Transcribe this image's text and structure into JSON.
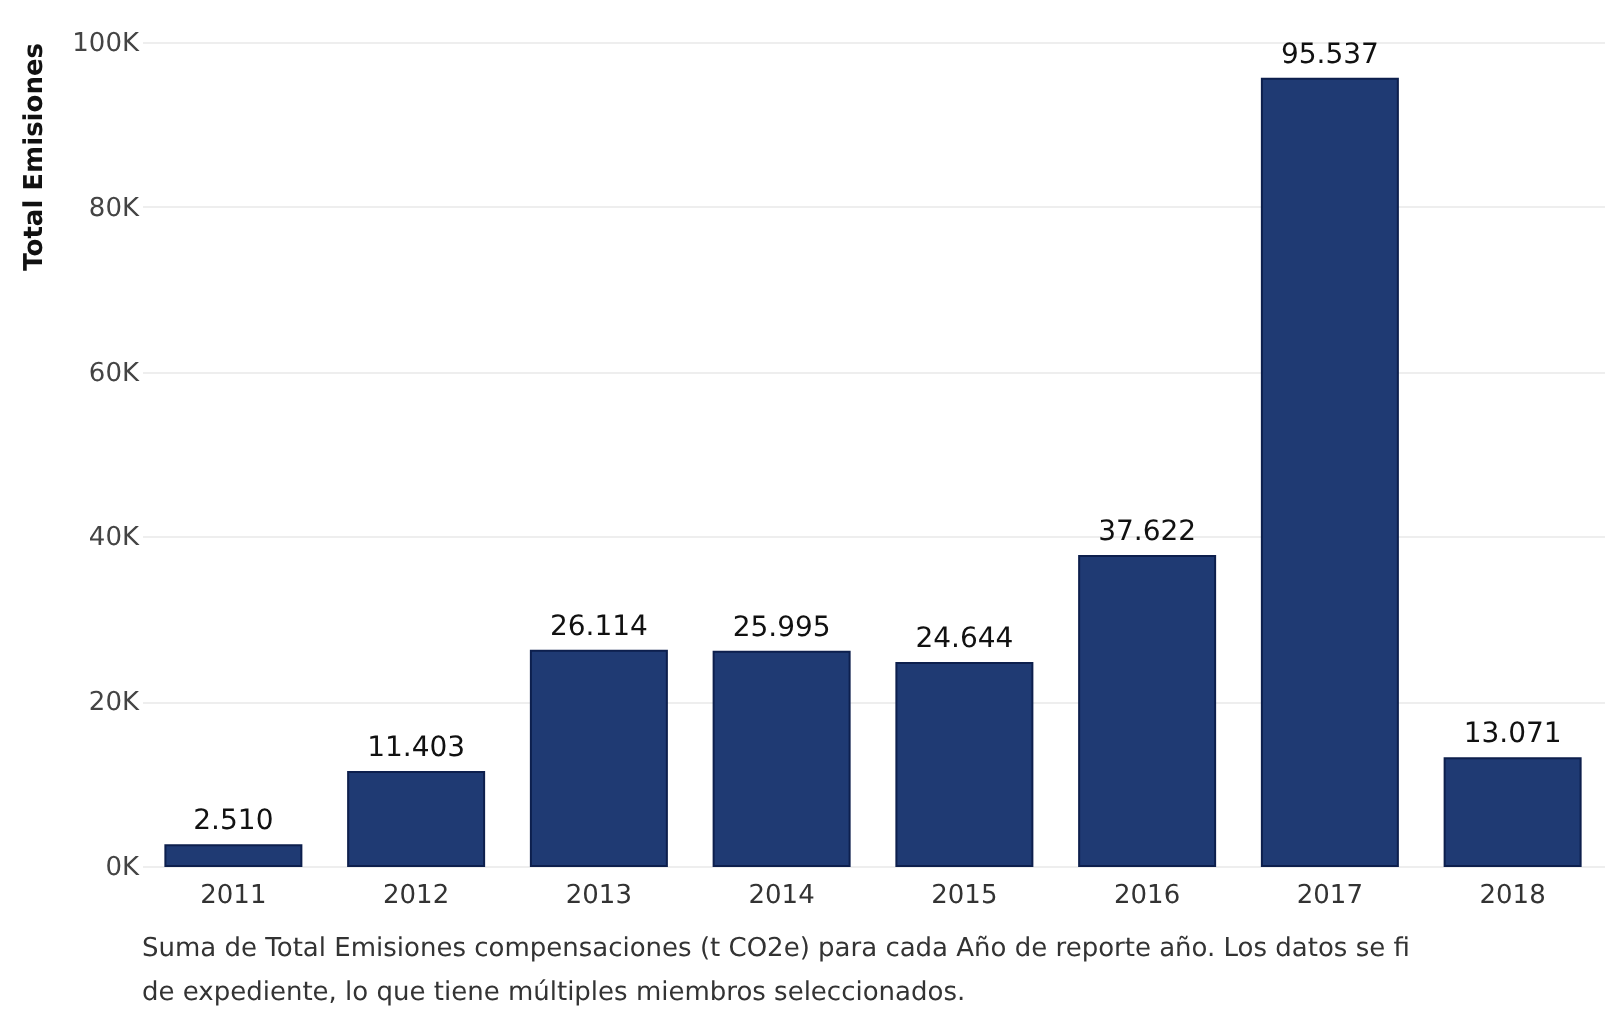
{
  "chart_data": {
    "type": "bar",
    "ylabel": "Total Emisiones",
    "categories": [
      "2011",
      "2012",
      "2013",
      "2014",
      "2015",
      "2016",
      "2017",
      "2018"
    ],
    "values": [
      2510,
      11403,
      26114,
      25995,
      24644,
      37622,
      95537,
      13071
    ],
    "value_labels": [
      "2.510",
      "11.403",
      "26.114",
      "25.995",
      "24.644",
      "37.622",
      "95.537",
      "13.071"
    ],
    "color": "#1f3a73",
    "ylim": [
      0,
      100000
    ],
    "yticks": [
      {
        "value": 0,
        "label": "0K"
      },
      {
        "value": 20000,
        "label": "20K"
      },
      {
        "value": 40000,
        "label": "40K"
      },
      {
        "value": 60000,
        "label": "60K"
      },
      {
        "value": 80000,
        "label": "80K"
      },
      {
        "value": 100000,
        "label": "100K"
      }
    ],
    "grid": "y",
    "annotations": [
      "Suma de Total Emisiones compensaciones (t CO2e) para cada Año de reporte año. Los datos se fi",
      "de expediente, lo que tiene múltiples miembros seleccionados."
    ]
  }
}
